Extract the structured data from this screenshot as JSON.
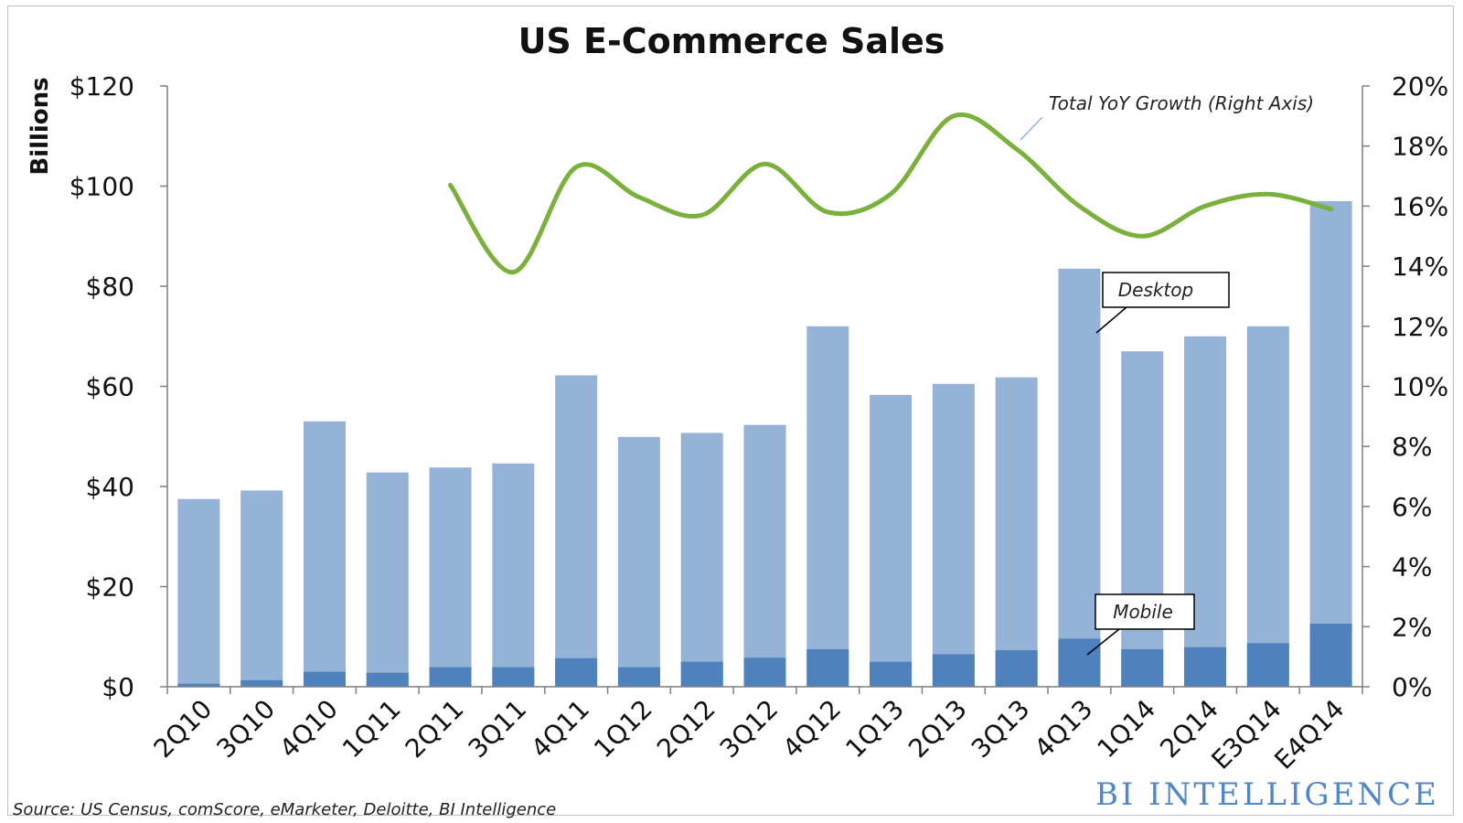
{
  "chart_data": {
    "type": "bar",
    "title": "US E-Commerce Sales",
    "ylabel": "Billions",
    "categories": [
      "2Q10",
      "3Q10",
      "4Q10",
      "1Q11",
      "2Q11",
      "3Q11",
      "4Q11",
      "1Q12",
      "2Q12",
      "3Q12",
      "4Q12",
      "1Q13",
      "2Q13",
      "3Q13",
      "4Q13",
      "1Q14",
      "2Q14",
      "E3Q14",
      "E4Q14"
    ],
    "series": [
      {
        "name": "Desktop",
        "type": "bar",
        "axis": "left",
        "color": "#95b3d7",
        "values": [
          37.5,
          39.2,
          53.0,
          42.8,
          43.8,
          44.6,
          62.2,
          49.9,
          50.7,
          52.3,
          72.0,
          58.3,
          60.5,
          61.8,
          83.5,
          67.0,
          70.0,
          72.0,
          97.0
        ]
      },
      {
        "name": "Mobile",
        "type": "bar",
        "axis": "left",
        "color": "#4f81bd",
        "values": [
          0.6,
          1.3,
          3.0,
          2.8,
          3.9,
          3.9,
          5.7,
          3.9,
          5.0,
          5.8,
          7.5,
          5.0,
          6.5,
          7.3,
          9.6,
          7.5,
          7.9,
          8.7,
          12.6
        ]
      },
      {
        "name": "Total YoY Growth (Right Axis)",
        "type": "line",
        "axis": "right",
        "color": "#7ab03c",
        "values": [
          null,
          null,
          null,
          null,
          16.7,
          13.8,
          17.3,
          16.3,
          15.7,
          17.4,
          15.8,
          16.4,
          19.0,
          17.9,
          16.0,
          15.0,
          16.0,
          16.4,
          15.9
        ]
      }
    ],
    "ylim": [
      0,
      120
    ],
    "yticks": [
      "$0",
      "$20",
      "$40",
      "$60",
      "$80",
      "$100",
      "$120"
    ],
    "y2lim": [
      0,
      20
    ],
    "y2ticks": [
      "0%",
      "2%",
      "4%",
      "6%",
      "8%",
      "10%",
      "12%",
      "14%",
      "16%",
      "18%",
      "20%"
    ],
    "annotations": {
      "growth": "Total YoY Growth (Right Axis)",
      "desktop": "Desktop",
      "mobile": "Mobile"
    },
    "grid": false,
    "source": "Source: US Census, comScore, eMarketer, Deloitte, BI Intelligence",
    "brand": "BI INTELLIGENCE"
  }
}
